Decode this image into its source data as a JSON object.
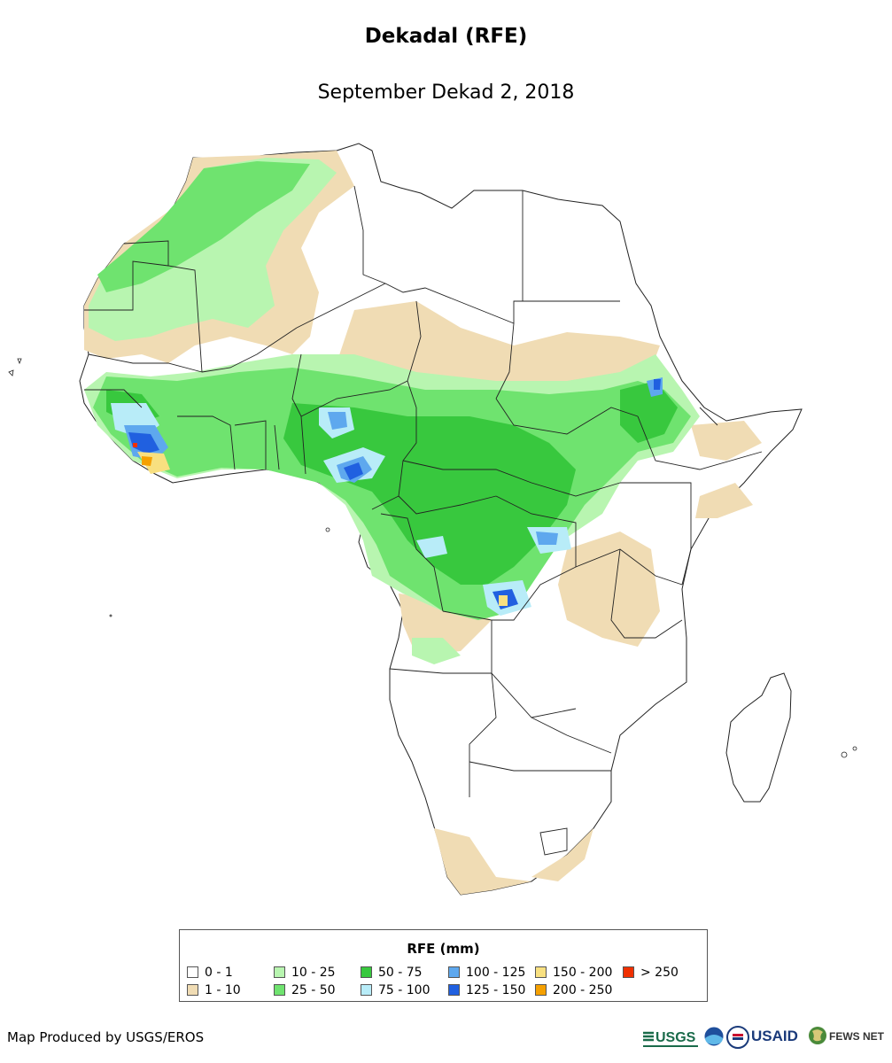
{
  "title": "Dekadal (RFE)",
  "subtitle": "September Dekad 2, 2018",
  "legend": {
    "title": "RFE (mm)",
    "items": [
      {
        "label": "0 - 1",
        "color": "#ffffff"
      },
      {
        "label": "1 - 10",
        "color": "#f0dcb4"
      },
      {
        "label": "10 - 25",
        "color": "#b8f5b0"
      },
      {
        "label": "25 - 50",
        "color": "#6fe36f"
      },
      {
        "label": "50 - 75",
        "color": "#38c83e"
      },
      {
        "label": "75 - 100",
        "color": "#b8ecf8"
      },
      {
        "label": "100 - 125",
        "color": "#5ea8ee"
      },
      {
        "label": "125 - 150",
        "color": "#2060e0"
      },
      {
        "label": "150 - 200",
        "color": "#f8e080"
      },
      {
        "label": "200 - 250",
        "color": "#f5a000"
      },
      {
        "label": "> 250",
        "color": "#f03000"
      }
    ]
  },
  "credit": "Map Produced by USGS/EROS",
  "logos": {
    "usgs": "USGS",
    "usaid": "USAID",
    "fewsnet": "FEWS NET"
  },
  "icons": [
    "usgs-logo-icon",
    "noaa-logo-icon",
    "usaid-seal-icon",
    "fewsnet-globe-icon"
  ]
}
